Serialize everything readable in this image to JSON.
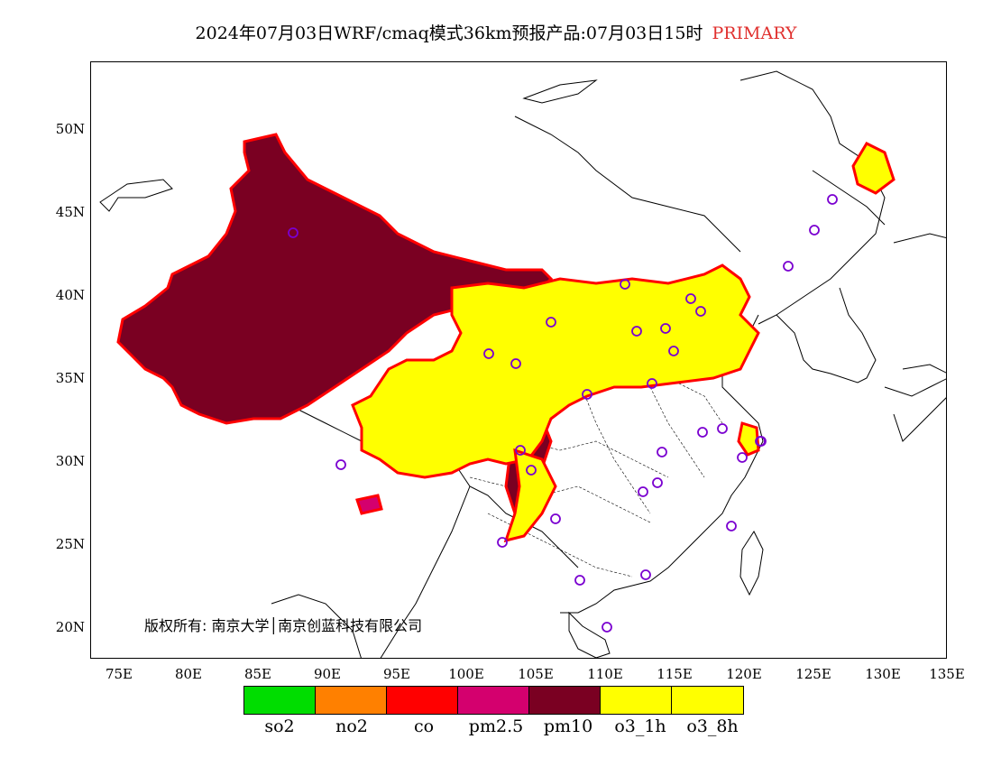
{
  "title": {
    "main": "2024年07月03日WRF/cmaq模式36km预报产品:07月03日15时",
    "tag": "PRIMARY",
    "tag_color": "#e0302e"
  },
  "axes": {
    "lat_labels": [
      "50N",
      "45N",
      "40N",
      "35N",
      "30N",
      "25N",
      "20N"
    ],
    "lon_labels": [
      "75E",
      "80E",
      "85E",
      "90E",
      "95E",
      "100E",
      "105E",
      "110E",
      "115E",
      "120E",
      "125E",
      "130E",
      "135E"
    ]
  },
  "copyright": "版权所有: 南京大学│南京创蓝科技有限公司",
  "legend": [
    {
      "label": "so2",
      "color": "#00dd00"
    },
    {
      "label": "no2",
      "color": "#ff8000"
    },
    {
      "label": "co",
      "color": "#ff0000"
    },
    {
      "label": "pm2.5",
      "color": "#d4006e"
    },
    {
      "label": "pm10",
      "color": "#7a0022"
    },
    {
      "label": "o3_1h",
      "color": "#ffff00"
    },
    {
      "label": "o3_8h",
      "color": "#ffff00"
    }
  ]
}
